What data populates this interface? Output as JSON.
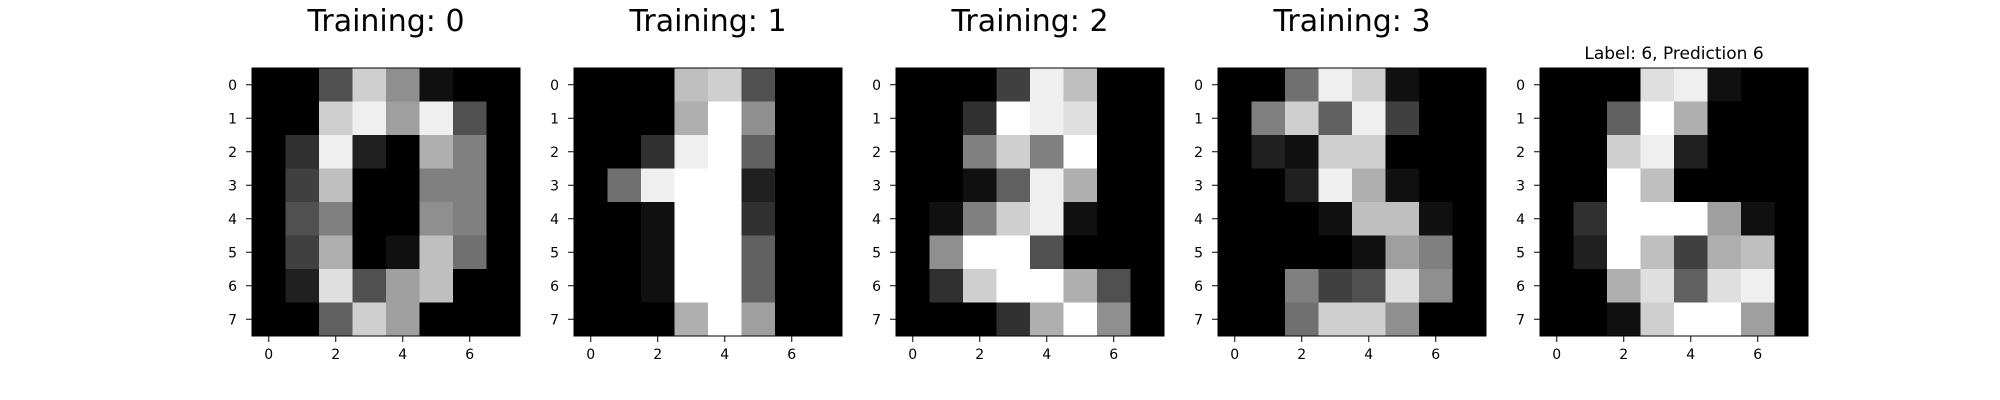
{
  "figure": {
    "background": "#ffffff",
    "cell_colormap": "gray",
    "value_range": [
      0,
      16
    ]
  },
  "chart_data": [
    {
      "type": "heatmap",
      "title": "Training: 0",
      "x_ticks": [
        "0",
        "2",
        "4",
        "6"
      ],
      "y_ticks": [
        "0",
        "1",
        "2",
        "3",
        "4",
        "5",
        "6",
        "7"
      ],
      "values": [
        [
          0,
          0,
          5,
          13,
          9,
          1,
          0,
          0
        ],
        [
          0,
          0,
          13,
          15,
          10,
          15,
          5,
          0
        ],
        [
          0,
          3,
          15,
          2,
          0,
          11,
          8,
          0
        ],
        [
          0,
          4,
          12,
          0,
          0,
          8,
          8,
          0
        ],
        [
          0,
          5,
          8,
          0,
          0,
          9,
          8,
          0
        ],
        [
          0,
          4,
          11,
          0,
          1,
          12,
          7,
          0
        ],
        [
          0,
          2,
          14,
          5,
          10,
          12,
          0,
          0
        ],
        [
          0,
          0,
          6,
          13,
          10,
          0,
          0,
          0
        ]
      ]
    },
    {
      "type": "heatmap",
      "title": "Training: 1",
      "x_ticks": [
        "0",
        "2",
        "4",
        "6"
      ],
      "y_ticks": [
        "0",
        "1",
        "2",
        "3",
        "4",
        "5",
        "6",
        "7"
      ],
      "values": [
        [
          0,
          0,
          0,
          12,
          13,
          5,
          0,
          0
        ],
        [
          0,
          0,
          0,
          11,
          16,
          9,
          0,
          0
        ],
        [
          0,
          0,
          3,
          15,
          16,
          6,
          0,
          0
        ],
        [
          0,
          7,
          15,
          16,
          16,
          2,
          0,
          0
        ],
        [
          0,
          0,
          1,
          16,
          16,
          3,
          0,
          0
        ],
        [
          0,
          0,
          1,
          16,
          16,
          6,
          0,
          0
        ],
        [
          0,
          0,
          1,
          16,
          16,
          6,
          0,
          0
        ],
        [
          0,
          0,
          0,
          11,
          16,
          10,
          0,
          0
        ]
      ]
    },
    {
      "type": "heatmap",
      "title": "Training: 2",
      "x_ticks": [
        "0",
        "2",
        "4",
        "6"
      ],
      "y_ticks": [
        "0",
        "1",
        "2",
        "3",
        "4",
        "5",
        "6",
        "7"
      ],
      "values": [
        [
          0,
          0,
          0,
          4,
          15,
          12,
          0,
          0
        ],
        [
          0,
          0,
          3,
          16,
          15,
          14,
          0,
          0
        ],
        [
          0,
          0,
          8,
          13,
          8,
          16,
          0,
          0
        ],
        [
          0,
          0,
          1,
          6,
          15,
          11,
          0,
          0
        ],
        [
          0,
          1,
          8,
          13,
          15,
          1,
          0,
          0
        ],
        [
          0,
          9,
          16,
          16,
          5,
          0,
          0,
          0
        ],
        [
          0,
          3,
          13,
          16,
          16,
          11,
          5,
          0
        ],
        [
          0,
          0,
          0,
          3,
          11,
          16,
          9,
          0
        ]
      ]
    },
    {
      "type": "heatmap",
      "title": "Training: 3",
      "x_ticks": [
        "0",
        "2",
        "4",
        "6"
      ],
      "y_ticks": [
        "0",
        "1",
        "2",
        "3",
        "4",
        "5",
        "6",
        "7"
      ],
      "values": [
        [
          0,
          0,
          7,
          15,
          13,
          1,
          0,
          0
        ],
        [
          0,
          8,
          13,
          6,
          15,
          4,
          0,
          0
        ],
        [
          0,
          2,
          1,
          13,
          13,
          0,
          0,
          0
        ],
        [
          0,
          0,
          2,
          15,
          11,
          1,
          0,
          0
        ],
        [
          0,
          0,
          0,
          1,
          12,
          12,
          1,
          0
        ],
        [
          0,
          0,
          0,
          0,
          1,
          10,
          8,
          0
        ],
        [
          0,
          0,
          8,
          4,
          5,
          14,
          9,
          0
        ],
        [
          0,
          0,
          7,
          13,
          13,
          9,
          0,
          0
        ]
      ]
    },
    {
      "type": "heatmap",
      "title": "Label: 6, Prediction 6",
      "x_ticks": [
        "0",
        "2",
        "4",
        "6"
      ],
      "y_ticks": [
        "0",
        "1",
        "2",
        "3",
        "4",
        "5",
        "6",
        "7"
      ],
      "values": [
        [
          0,
          0,
          0,
          14,
          15,
          1,
          0,
          0
        ],
        [
          0,
          0,
          6,
          16,
          11,
          0,
          0,
          0
        ],
        [
          0,
          0,
          13,
          15,
          2,
          0,
          0,
          0
        ],
        [
          0,
          0,
          16,
          12,
          0,
          0,
          0,
          0
        ],
        [
          0,
          3,
          16,
          16,
          16,
          10,
          1,
          0
        ],
        [
          0,
          2,
          16,
          12,
          4,
          11,
          12,
          0
        ],
        [
          0,
          0,
          11,
          14,
          6,
          14,
          15,
          0
        ],
        [
          0,
          0,
          1,
          13,
          16,
          16,
          10,
          0
        ]
      ]
    }
  ]
}
